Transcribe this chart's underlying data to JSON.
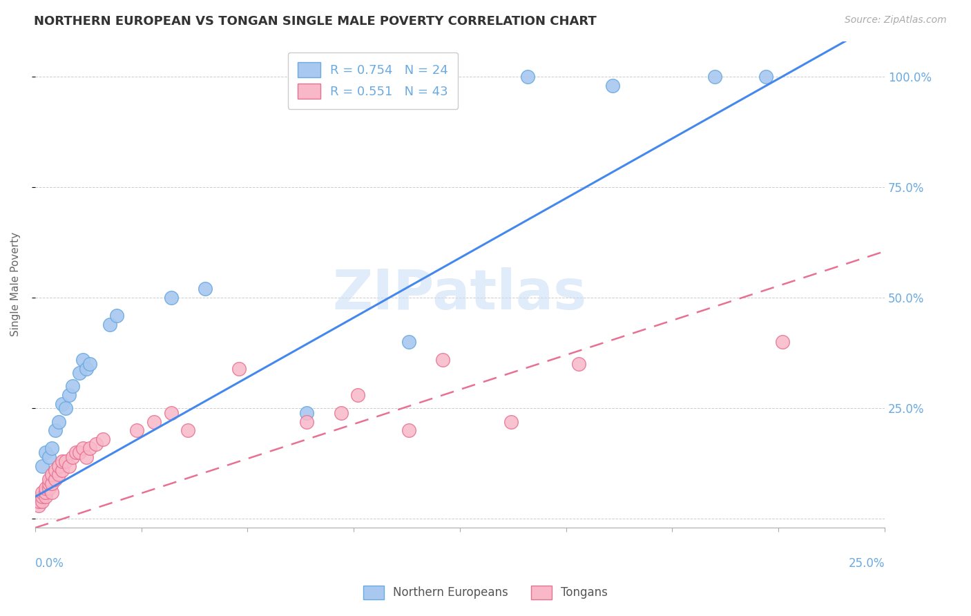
{
  "title": "NORTHERN EUROPEAN VS TONGAN SINGLE MALE POVERTY CORRELATION CHART",
  "source": "Source: ZipAtlas.com",
  "ylabel": "Single Male Poverty",
  "ytick_labels": [
    "",
    "25.0%",
    "50.0%",
    "75.0%",
    "100.0%"
  ],
  "ytick_values": [
    0,
    0.25,
    0.5,
    0.75,
    1.0
  ],
  "xlim": [
    0,
    0.25
  ],
  "ylim": [
    -0.02,
    1.08
  ],
  "blue_scatter": [
    [
      0.002,
      0.12
    ],
    [
      0.003,
      0.15
    ],
    [
      0.004,
      0.14
    ],
    [
      0.005,
      0.16
    ],
    [
      0.006,
      0.2
    ],
    [
      0.007,
      0.22
    ],
    [
      0.008,
      0.26
    ],
    [
      0.009,
      0.25
    ],
    [
      0.01,
      0.28
    ],
    [
      0.011,
      0.3
    ],
    [
      0.013,
      0.33
    ],
    [
      0.014,
      0.36
    ],
    [
      0.015,
      0.34
    ],
    [
      0.016,
      0.35
    ],
    [
      0.022,
      0.44
    ],
    [
      0.024,
      0.46
    ],
    [
      0.04,
      0.5
    ],
    [
      0.05,
      0.52
    ],
    [
      0.08,
      0.24
    ],
    [
      0.11,
      0.4
    ],
    [
      0.145,
      1.0
    ],
    [
      0.17,
      0.98
    ],
    [
      0.2,
      1.0
    ],
    [
      0.215,
      1.0
    ]
  ],
  "pink_scatter": [
    [
      0.001,
      0.03
    ],
    [
      0.001,
      0.04
    ],
    [
      0.002,
      0.04
    ],
    [
      0.002,
      0.05
    ],
    [
      0.002,
      0.06
    ],
    [
      0.003,
      0.05
    ],
    [
      0.003,
      0.06
    ],
    [
      0.003,
      0.07
    ],
    [
      0.004,
      0.07
    ],
    [
      0.004,
      0.08
    ],
    [
      0.004,
      0.09
    ],
    [
      0.005,
      0.06
    ],
    [
      0.005,
      0.08
    ],
    [
      0.005,
      0.1
    ],
    [
      0.006,
      0.09
    ],
    [
      0.006,
      0.11
    ],
    [
      0.007,
      0.1
    ],
    [
      0.007,
      0.12
    ],
    [
      0.008,
      0.11
    ],
    [
      0.008,
      0.13
    ],
    [
      0.009,
      0.13
    ],
    [
      0.01,
      0.12
    ],
    [
      0.011,
      0.14
    ],
    [
      0.012,
      0.15
    ],
    [
      0.013,
      0.15
    ],
    [
      0.014,
      0.16
    ],
    [
      0.015,
      0.14
    ],
    [
      0.016,
      0.16
    ],
    [
      0.018,
      0.17
    ],
    [
      0.02,
      0.18
    ],
    [
      0.03,
      0.2
    ],
    [
      0.035,
      0.22
    ],
    [
      0.04,
      0.24
    ],
    [
      0.045,
      0.2
    ],
    [
      0.06,
      0.34
    ],
    [
      0.08,
      0.22
    ],
    [
      0.09,
      0.24
    ],
    [
      0.095,
      0.28
    ],
    [
      0.11,
      0.2
    ],
    [
      0.12,
      0.36
    ],
    [
      0.14,
      0.22
    ],
    [
      0.16,
      0.35
    ],
    [
      0.22,
      0.4
    ]
  ],
  "blue_color": "#a8c8f0",
  "blue_edge_color": "#6aaae0",
  "pink_color": "#f8b8c8",
  "pink_edge_color": "#e87090",
  "blue_line_color": "#4488ee",
  "pink_line_color": "#e87090",
  "pink_line_style": "--",
  "watermark_text": "ZIPatlas",
  "background_color": "#ffffff",
  "grid_color": "#cccccc",
  "title_color": "#333333",
  "axis_label_color": "#6aaae0",
  "source_color": "#aaaaaa",
  "legend_blue_label": "R = 0.754   N = 24",
  "legend_pink_label": "R = 0.551   N = 43",
  "bottom_legend_blue": "Northern Europeans",
  "bottom_legend_pink": "Tongans"
}
